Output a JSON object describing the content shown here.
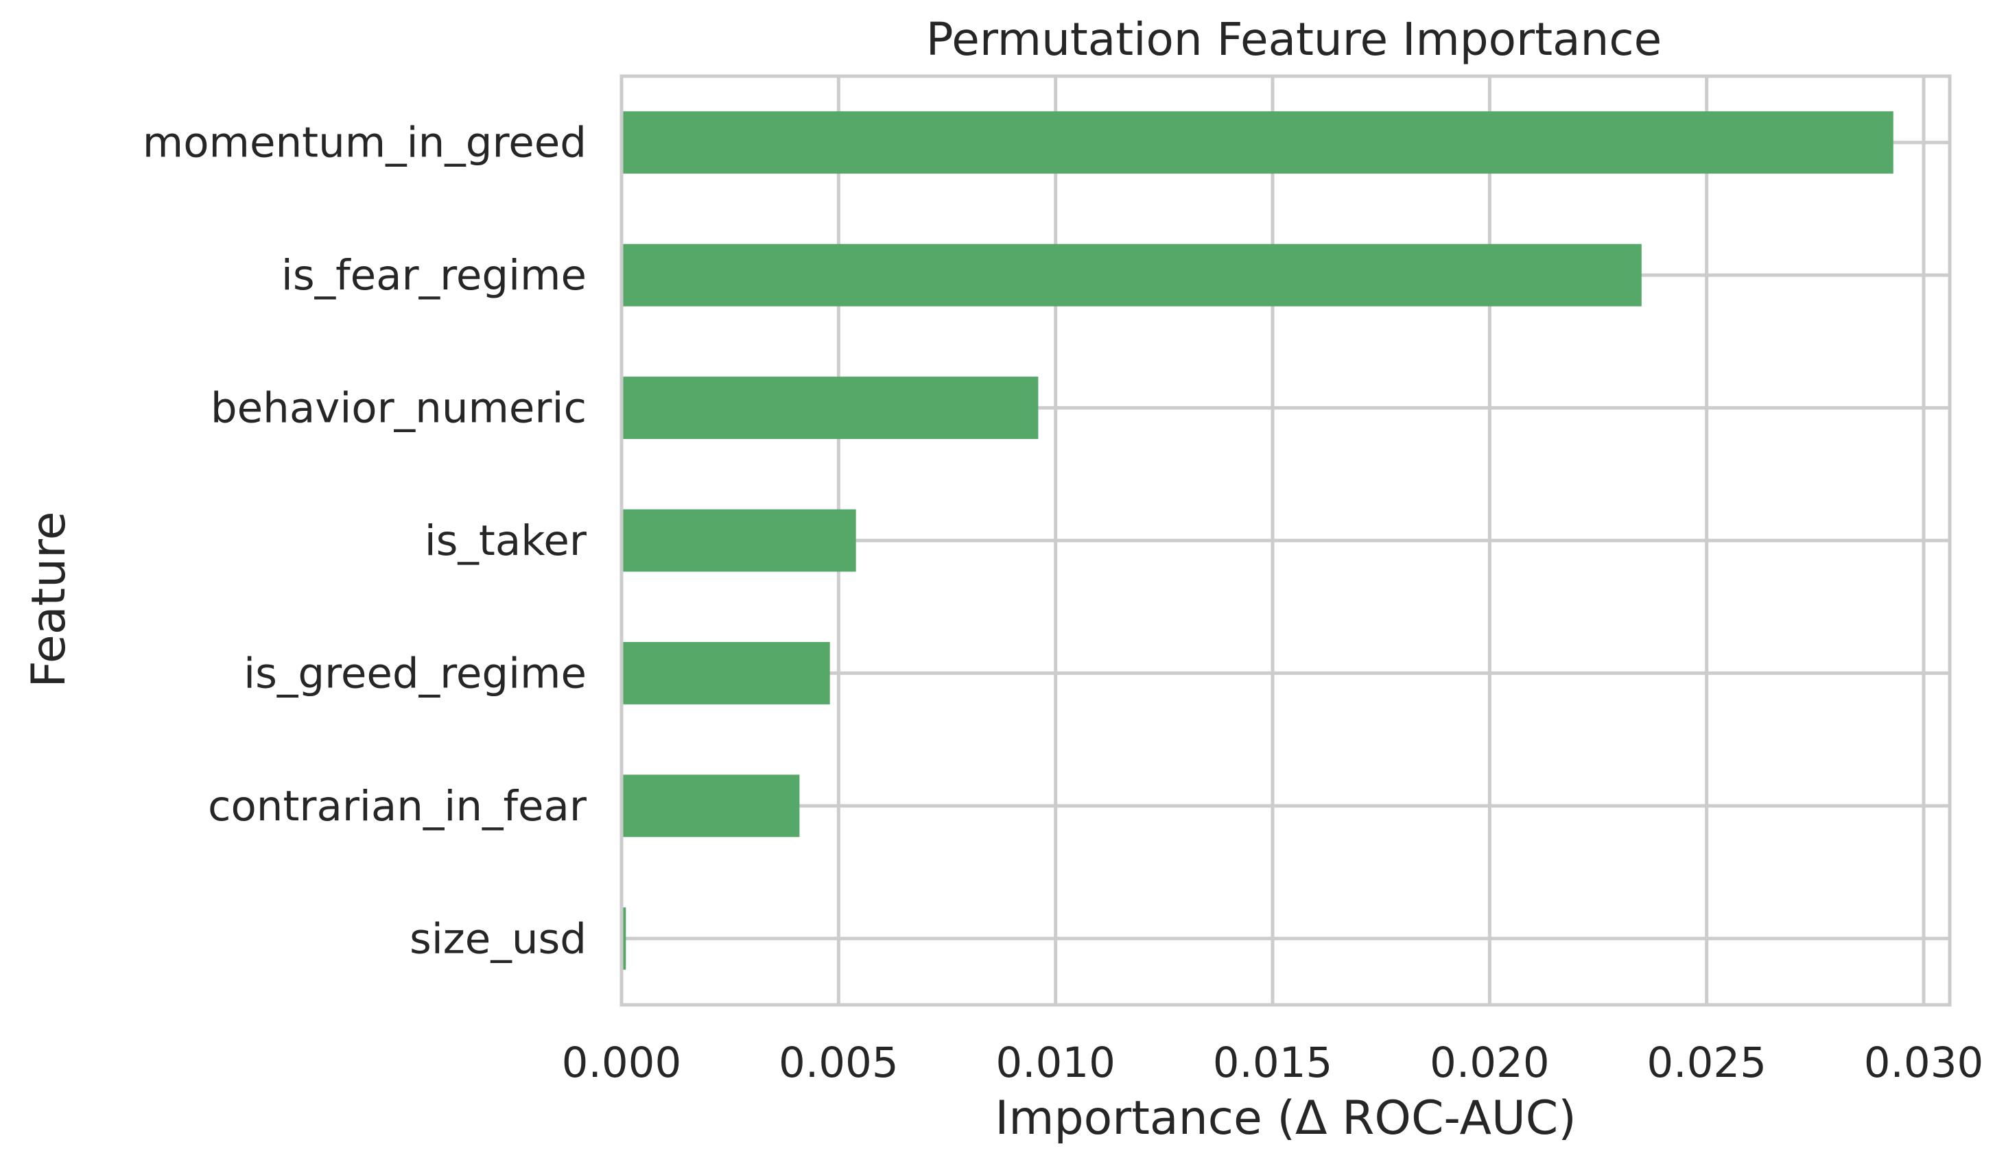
{
  "chart_data": {
    "type": "bar",
    "orientation": "horizontal",
    "title": "Permutation Feature Importance",
    "xlabel": "Importance (Δ ROC-AUC)",
    "ylabel": "Feature",
    "categories": [
      "momentum_in_greed",
      "is_fear_regime",
      "behavior_numeric",
      "is_taker",
      "is_greed_regime",
      "contrarian_in_fear",
      "size_usd"
    ],
    "values": [
      0.0293,
      0.0235,
      0.0096,
      0.0054,
      0.0048,
      0.0041,
      0.0001
    ],
    "xlim": [
      0.0,
      0.0306
    ],
    "xticks": [
      "0.000",
      "0.005",
      "0.010",
      "0.015",
      "0.020",
      "0.025",
      "0.030"
    ],
    "grid": true,
    "bar_color": "#55a868",
    "grid_color": "#cccccc",
    "text_color": "#262626"
  }
}
